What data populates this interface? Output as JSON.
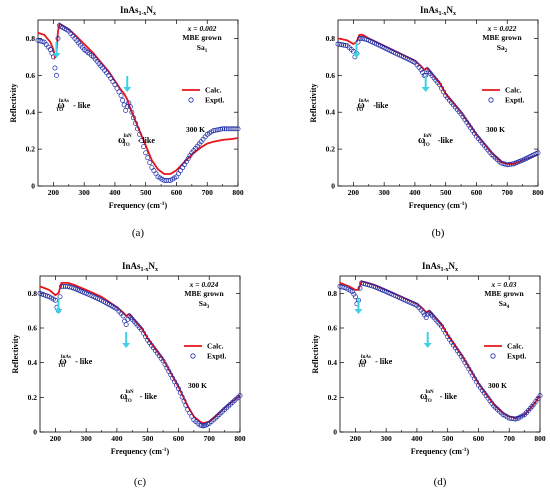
{
  "chart_data": [
    {
      "type": "scatter",
      "panel_label": "(a)",
      "title": {
        "base": "InAs",
        "sub1": "1-x",
        "mid": "N",
        "sub2": "x"
      },
      "xlabel": "Frequency (cm",
      "xlabel_sup": "-1",
      "xlabel_end": ")",
      "ylabel": "Reflectivity",
      "xlim": [
        150,
        800
      ],
      "ylim": [
        0,
        0.9
      ],
      "xticks": [
        200,
        300,
        400,
        500,
        600,
        700,
        800
      ],
      "xtick_labels": [
        "200",
        "300",
        "400",
        "500",
        "600",
        "700",
        "800"
      ],
      "yticks": [
        0,
        0.2,
        0.4,
        0.6,
        0.8
      ],
      "ytick_labels": [
        "0",
        "0.2",
        "0.4",
        "0.6",
        "0.8"
      ],
      "info_lines": [
        "x = 0.002",
        "MBE grown",
        "Sa"
      ],
      "sample_sub": "1",
      "temperature": "300 K",
      "arrow_x": [
        210,
        440
      ],
      "ann_inas": {
        "w": "ω",
        "sup": "InAs",
        "sub": "TO",
        "tail": " - like"
      },
      "ann_inn": {
        "w": "ω",
        "sup": "InN",
        "sub": "TO",
        "tail": " - like"
      },
      "series": [
        {
          "name": "Calc.",
          "style": "line",
          "color": "#e8141b",
          "x": [
            150,
            170,
            190,
            200,
            205,
            210,
            215,
            220,
            230,
            250,
            270,
            300,
            330,
            360,
            380,
            400,
            420,
            430,
            440,
            450,
            460,
            480,
            500,
            520,
            540,
            560,
            580,
            600,
            620,
            650,
            680,
            700,
            720,
            750,
            780,
            800
          ],
          "y": [
            0.83,
            0.82,
            0.78,
            0.74,
            0.7,
            0.72,
            0.84,
            0.88,
            0.87,
            0.85,
            0.82,
            0.77,
            0.72,
            0.66,
            0.62,
            0.57,
            0.52,
            0.5,
            0.47,
            0.42,
            0.38,
            0.3,
            0.22,
            0.14,
            0.09,
            0.065,
            0.065,
            0.085,
            0.12,
            0.17,
            0.21,
            0.23,
            0.24,
            0.25,
            0.255,
            0.26
          ]
        },
        {
          "name": "Exptl.",
          "style": "markers",
          "color": "#1b2aa6",
          "x": [
            150,
            170,
            190,
            200,
            205,
            210,
            215,
            220,
            230,
            250,
            270,
            300,
            330,
            360,
            380,
            400,
            420,
            430,
            435,
            440,
            445,
            450,
            460,
            480,
            500,
            520,
            540,
            560,
            580,
            600,
            620,
            650,
            680,
            700,
            720,
            750,
            780,
            800
          ],
          "y": [
            0.79,
            0.78,
            0.74,
            0.7,
            0.64,
            0.6,
            0.8,
            0.87,
            0.86,
            0.84,
            0.8,
            0.74,
            0.7,
            0.64,
            0.6,
            0.55,
            0.49,
            0.44,
            0.41,
            0.43,
            0.45,
            0.43,
            0.37,
            0.28,
            0.18,
            0.1,
            0.05,
            0.03,
            0.03,
            0.05,
            0.1,
            0.18,
            0.24,
            0.28,
            0.3,
            0.31,
            0.31,
            0.31
          ]
        }
      ]
    },
    {
      "type": "scatter",
      "panel_label": "(b)",
      "title": {
        "base": "InAs",
        "sub1": "1-x",
        "mid": "N",
        "sub2": "x"
      },
      "xlabel": "Frequency (cm",
      "xlabel_sup": "-1",
      "xlabel_end": ")",
      "ylabel": "Reflectivity",
      "xlim": [
        150,
        800
      ],
      "ylim": [
        0,
        0.9
      ],
      "xticks": [
        200,
        300,
        400,
        500,
        600,
        700,
        800
      ],
      "xtick_labels": [
        "200",
        "300",
        "400",
        "500",
        "600",
        "700",
        "800"
      ],
      "yticks": [
        0,
        0.2,
        0.4,
        0.6,
        0.8
      ],
      "ytick_labels": [
        "0",
        "0.2",
        "0.4",
        "0.6",
        "0.8"
      ],
      "info_lines": [
        "x = 0.022",
        "MBE grown",
        "Sa"
      ],
      "sample_sub": "2",
      "temperature": "300 K",
      "arrow_x": [
        210,
        435
      ],
      "ann_inas": {
        "w": "ω",
        "sup": "InAs",
        "sub": "TO",
        "tail": " -like"
      },
      "ann_inn": {
        "w": "ω",
        "sup": "InN",
        "sub": "TO",
        "tail": " -like"
      },
      "series": [
        {
          "name": "Calc.",
          "style": "line",
          "color": "#e8141b",
          "x": [
            150,
            180,
            200,
            210,
            220,
            230,
            250,
            300,
            350,
            400,
            420,
            430,
            440,
            450,
            480,
            500,
            550,
            600,
            650,
            680,
            700,
            720,
            750,
            800
          ],
          "y": [
            0.8,
            0.79,
            0.77,
            0.78,
            0.82,
            0.82,
            0.8,
            0.76,
            0.72,
            0.68,
            0.65,
            0.63,
            0.64,
            0.62,
            0.56,
            0.5,
            0.4,
            0.28,
            0.18,
            0.13,
            0.12,
            0.12,
            0.14,
            0.17
          ]
        },
        {
          "name": "Exptl.",
          "style": "markers",
          "color": "#1b2aa6",
          "x": [
            150,
            180,
            200,
            205,
            210,
            215,
            220,
            230,
            250,
            300,
            350,
            400,
            420,
            430,
            435,
            440,
            450,
            480,
            500,
            550,
            600,
            650,
            680,
            700,
            720,
            750,
            800
          ],
          "y": [
            0.77,
            0.76,
            0.73,
            0.7,
            0.72,
            0.78,
            0.8,
            0.8,
            0.79,
            0.75,
            0.71,
            0.67,
            0.63,
            0.6,
            0.6,
            0.63,
            0.61,
            0.55,
            0.49,
            0.39,
            0.27,
            0.17,
            0.125,
            0.115,
            0.12,
            0.14,
            0.18
          ]
        }
      ]
    },
    {
      "type": "scatter",
      "panel_label": "(c)",
      "title": {
        "base": "InAs",
        "sub1": "1-x",
        "mid": "N",
        "sub2": "x"
      },
      "xlabel": "Frequency (cm",
      "xlabel_sup": "-1",
      "xlabel_end": ")",
      "ylabel": "Reflectivity",
      "xlim": [
        150,
        800
      ],
      "ylim": [
        0,
        0.9
      ],
      "xticks": [
        200,
        300,
        400,
        500,
        600,
        700,
        800
      ],
      "xtick_labels": [
        "200",
        "300",
        "400",
        "500",
        "600",
        "700",
        "800"
      ],
      "yticks": [
        0,
        0.2,
        0.4,
        0.6,
        0.8
      ],
      "ytick_labels": [
        "0",
        "0.2",
        "0.4",
        "0.6",
        "0.8"
      ],
      "info_lines": [
        "x = 0.024",
        "MBE grown",
        "Sa"
      ],
      "sample_sub": "3",
      "temperature": "300 K",
      "arrow_x": [
        210,
        430
      ],
      "ann_inas": {
        "w": "ω",
        "sup": "InAs",
        "sub": "TO",
        "tail": " - like"
      },
      "ann_inn": {
        "w": "ω",
        "sup": "InN",
        "sub": "TO",
        "tail": " - like"
      },
      "series": [
        {
          "name": "Calc.",
          "style": "line",
          "color": "#e8141b",
          "x": [
            150,
            180,
            200,
            210,
            220,
            240,
            260,
            300,
            350,
            400,
            420,
            430,
            440,
            450,
            480,
            500,
            550,
            600,
            630,
            650,
            670,
            680,
            700,
            720,
            750,
            800
          ],
          "y": [
            0.84,
            0.82,
            0.79,
            0.8,
            0.86,
            0.86,
            0.85,
            0.82,
            0.78,
            0.72,
            0.69,
            0.67,
            0.68,
            0.66,
            0.6,
            0.54,
            0.42,
            0.26,
            0.15,
            0.09,
            0.06,
            0.05,
            0.06,
            0.09,
            0.14,
            0.21
          ]
        },
        {
          "name": "Exptl.",
          "style": "markers",
          "color": "#1b2aa6",
          "x": [
            150,
            180,
            200,
            205,
            210,
            215,
            220,
            240,
            260,
            300,
            350,
            400,
            420,
            425,
            430,
            435,
            440,
            450,
            480,
            500,
            550,
            600,
            630,
            650,
            670,
            680,
            690,
            700,
            720,
            750,
            800
          ],
          "y": [
            0.8,
            0.78,
            0.76,
            0.72,
            0.7,
            0.78,
            0.84,
            0.84,
            0.83,
            0.8,
            0.76,
            0.71,
            0.67,
            0.64,
            0.62,
            0.65,
            0.67,
            0.65,
            0.59,
            0.53,
            0.41,
            0.25,
            0.13,
            0.07,
            0.04,
            0.035,
            0.04,
            0.05,
            0.08,
            0.13,
            0.21
          ]
        }
      ]
    },
    {
      "type": "scatter",
      "panel_label": "(d)",
      "title": {
        "base": "InAs",
        "sub1": "1-x",
        "mid": "N",
        "sub2": "x"
      },
      "xlabel": "Frequency (cm",
      "xlabel_sup": "-1",
      "xlabel_end": ")",
      "ylabel": "Reflectivity",
      "xlim": [
        150,
        800
      ],
      "ylim": [
        0,
        0.9
      ],
      "xticks": [
        200,
        300,
        400,
        500,
        600,
        700,
        800
      ],
      "xtick_labels": [
        "200",
        "300",
        "400",
        "500",
        "600",
        "700",
        "800"
      ],
      "yticks": [
        0,
        0.2,
        0.4,
        0.6,
        0.8
      ],
      "ytick_labels": [
        "0",
        "0.2",
        "0.4",
        "0.6",
        "0.8"
      ],
      "info_lines": [
        "x = 0.03",
        "MBE grown",
        "Sa"
      ],
      "sample_sub": "4",
      "temperature": "300 K",
      "arrow_x": [
        210,
        435
      ],
      "ann_inas": {
        "w": "ω",
        "sup": "InAs",
        "sub": "TO",
        "tail": " - like"
      },
      "ann_inn": {
        "w": "ω",
        "sup": "InN",
        "sub": "TO",
        "tail": " - like"
      },
      "series": [
        {
          "name": "Calc.",
          "style": "line",
          "color": "#e8141b",
          "x": [
            150,
            180,
            200,
            210,
            220,
            240,
            260,
            300,
            350,
            400,
            420,
            430,
            440,
            450,
            480,
            500,
            550,
            600,
            650,
            680,
            700,
            720,
            750,
            780,
            800
          ],
          "y": [
            0.86,
            0.84,
            0.82,
            0.82,
            0.87,
            0.86,
            0.85,
            0.82,
            0.78,
            0.74,
            0.71,
            0.69,
            0.7,
            0.68,
            0.62,
            0.56,
            0.43,
            0.28,
            0.16,
            0.11,
            0.09,
            0.08,
            0.1,
            0.16,
            0.21
          ]
        },
        {
          "name": "Exptl.",
          "style": "markers",
          "color": "#1b2aa6",
          "x": [
            150,
            170,
            190,
            200,
            205,
            210,
            215,
            220,
            240,
            260,
            300,
            350,
            400,
            420,
            430,
            435,
            440,
            450,
            480,
            500,
            550,
            600,
            650,
            680,
            700,
            720,
            730,
            750,
            780,
            800
          ],
          "y": [
            0.84,
            0.83,
            0.81,
            0.78,
            0.74,
            0.76,
            0.83,
            0.86,
            0.85,
            0.84,
            0.81,
            0.77,
            0.73,
            0.69,
            0.66,
            0.68,
            0.69,
            0.67,
            0.61,
            0.55,
            0.42,
            0.27,
            0.15,
            0.1,
            0.08,
            0.075,
            0.08,
            0.1,
            0.16,
            0.21
          ]
        }
      ]
    }
  ]
}
